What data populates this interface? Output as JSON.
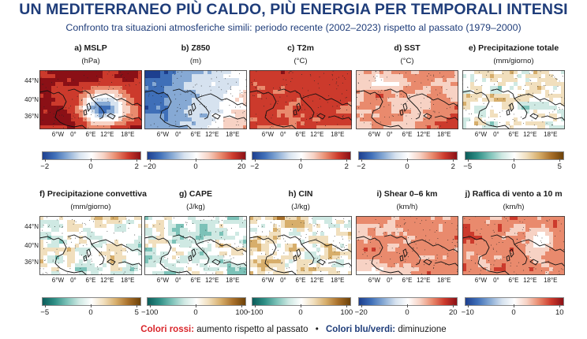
{
  "title": "UN MEDITERRANEO PIÙ CALDO, PIÙ ENERGIA PER TEMPORALI INTENSI",
  "subtitle": "Confronto tra situazioni atmosferiche simili: periodo recente (2002–2023) rispetto al passato (1979–2000)",
  "map_axes": {
    "x_ticks": [
      "6°W",
      "0°",
      "6°E",
      "12°E",
      "18°E"
    ],
    "y_ticks": [
      "44°N",
      "40°N",
      "36°N"
    ]
  },
  "panels": [
    {
      "id": "a",
      "title": "a) MSLP",
      "unit": "(hPa)",
      "colorbar": {
        "ticks": [
          "−2",
          "0",
          "2"
        ],
        "scheme": "blue-white-red"
      },
      "pattern": "mslp"
    },
    {
      "id": "b",
      "title": "b) Z850",
      "unit": "(m)",
      "colorbar": {
        "ticks": [
          "−20",
          "0",
          "20"
        ],
        "scheme": "blue-white-red"
      },
      "pattern": "z850"
    },
    {
      "id": "c",
      "title": "c) T2m",
      "unit": "(°C)",
      "colorbar": {
        "ticks": [
          "−2",
          "0",
          "2"
        ],
        "scheme": "blue-white-red"
      },
      "pattern": "t2m"
    },
    {
      "id": "d",
      "title": "d) SST",
      "unit": "(°C)",
      "colorbar": {
        "ticks": [
          "−2",
          "0",
          "2"
        ],
        "scheme": "blue-white-red"
      },
      "pattern": "sst"
    },
    {
      "id": "e",
      "title": "e) Precipitazione totale",
      "unit": "(mm/giorno)",
      "colorbar": {
        "ticks": [
          "−5",
          "0",
          "5"
        ],
        "scheme": "teal-white-brown"
      },
      "pattern": "prec"
    },
    {
      "id": "f",
      "title": "f) Precipitazione convettiva",
      "unit": "(mm/giorno)",
      "colorbar": {
        "ticks": [
          "−5",
          "0",
          "5"
        ],
        "scheme": "teal-white-brown"
      },
      "pattern": "conv"
    },
    {
      "id": "g",
      "title": "g) CAPE",
      "unit": "(J/kg)",
      "colorbar": {
        "ticks": [
          "−100",
          "0",
          "100"
        ],
        "scheme": "teal-white-brown"
      },
      "pattern": "cape"
    },
    {
      "id": "h",
      "title": "h) CIN",
      "unit": "(J/kg)",
      "colorbar": {
        "ticks": [
          "−100",
          "0",
          "100"
        ],
        "scheme": "teal-white-brown"
      },
      "pattern": "cin"
    },
    {
      "id": "i",
      "title": "i) Shear 0–6 km",
      "unit": "(km/h)",
      "colorbar": {
        "ticks": [
          "−20",
          "0",
          "20"
        ],
        "scheme": "blue-white-red"
      },
      "pattern": "shear"
    },
    {
      "id": "j",
      "title": "j) Raffica di vento a 10 m",
      "unit": "(km/h)",
      "colorbar": {
        "ticks": [
          "−10",
          "0",
          "10"
        ],
        "scheme": "blue-white-red"
      },
      "pattern": "gust"
    }
  ],
  "legend": {
    "red_label": "Colori rossi:",
    "red_text": "aumento rispetto al passato",
    "separator": "•",
    "blue_label": "Colori blu/verdi:",
    "blue_text": "diminuzione"
  },
  "colors": {
    "title": "#1f3d7a",
    "red": "#d9252a",
    "blue": "#1f3d7a"
  }
}
